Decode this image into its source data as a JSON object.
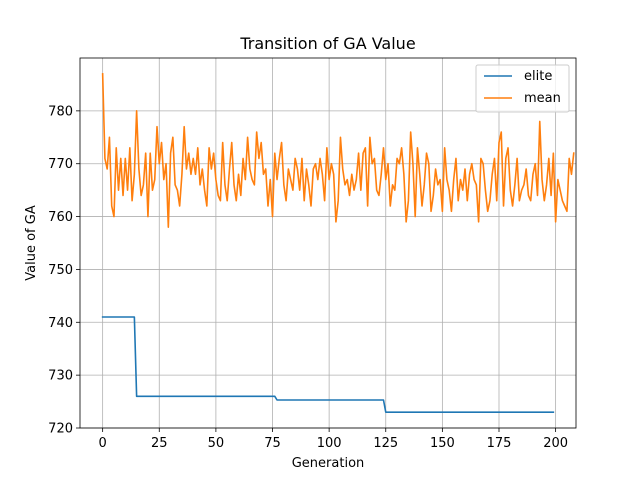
{
  "chart_data": {
    "type": "line",
    "title": "Transition of GA Value",
    "xlabel": "Generation",
    "ylabel": "Value of GA",
    "xlim": [
      -10,
      209
    ],
    "ylim": [
      720,
      790
    ],
    "xticks": [
      0,
      25,
      50,
      75,
      100,
      125,
      150,
      175,
      200
    ],
    "yticks": [
      720,
      730,
      740,
      750,
      760,
      770,
      780
    ],
    "grid": true,
    "legend": "top-right",
    "series": [
      {
        "name": "elite",
        "color": "#1f77b4",
        "x": [
          0,
          14,
          15,
          76,
          77,
          124,
          125,
          199
        ],
        "y": [
          741,
          741,
          726,
          726,
          725.3,
          725.3,
          723,
          723
        ]
      },
      {
        "name": "mean",
        "color": "#ff7f0e",
        "y": [
          787,
          771,
          769,
          775,
          762,
          760,
          773,
          765,
          771,
          764,
          771,
          765,
          773,
          763,
          768,
          780,
          769,
          764,
          766,
          772,
          760,
          772,
          765,
          767,
          777,
          770,
          774,
          767,
          770,
          758,
          772,
          775,
          766,
          765,
          762,
          768,
          777,
          769,
          772,
          768,
          771,
          768,
          773,
          766,
          769,
          765,
          762,
          773,
          769,
          772,
          767,
          764,
          763,
          774,
          766,
          763,
          769,
          774,
          766,
          763,
          768,
          764,
          771,
          767,
          775,
          769,
          767,
          766,
          776,
          771,
          774,
          768,
          769,
          762,
          767,
          760,
          772,
          767,
          771,
          774,
          766,
          763,
          769,
          767,
          765,
          771,
          769,
          765,
          771,
          763,
          769,
          766,
          762,
          769,
          770,
          767,
          771,
          768,
          763,
          773,
          767,
          770,
          768,
          759,
          763,
          775,
          769,
          766,
          767,
          764,
          768,
          765,
          767,
          772,
          765,
          772,
          773,
          762,
          775,
          770,
          771,
          765,
          764,
          768,
          773,
          767,
          770,
          762,
          766,
          765,
          771,
          770,
          773,
          768,
          759,
          763,
          776,
          770,
          760,
          773,
          768,
          762,
          766,
          772,
          770,
          761,
          764,
          769,
          766,
          767,
          761,
          773,
          767,
          765,
          761,
          767,
          771,
          763,
          767,
          765,
          769,
          763,
          768,
          770,
          767,
          766,
          759,
          771,
          770,
          765,
          761,
          763,
          768,
          771,
          763,
          774,
          776,
          762,
          771,
          773,
          765,
          762,
          766,
          771,
          763,
          765,
          766,
          769,
          764,
          763,
          768,
          770,
          764,
          778,
          767,
          763,
          766,
          771,
          764,
          772,
          759,
          767,
          765,
          763,
          762,
          761,
          771,
          768,
          772
        ]
      }
    ]
  }
}
